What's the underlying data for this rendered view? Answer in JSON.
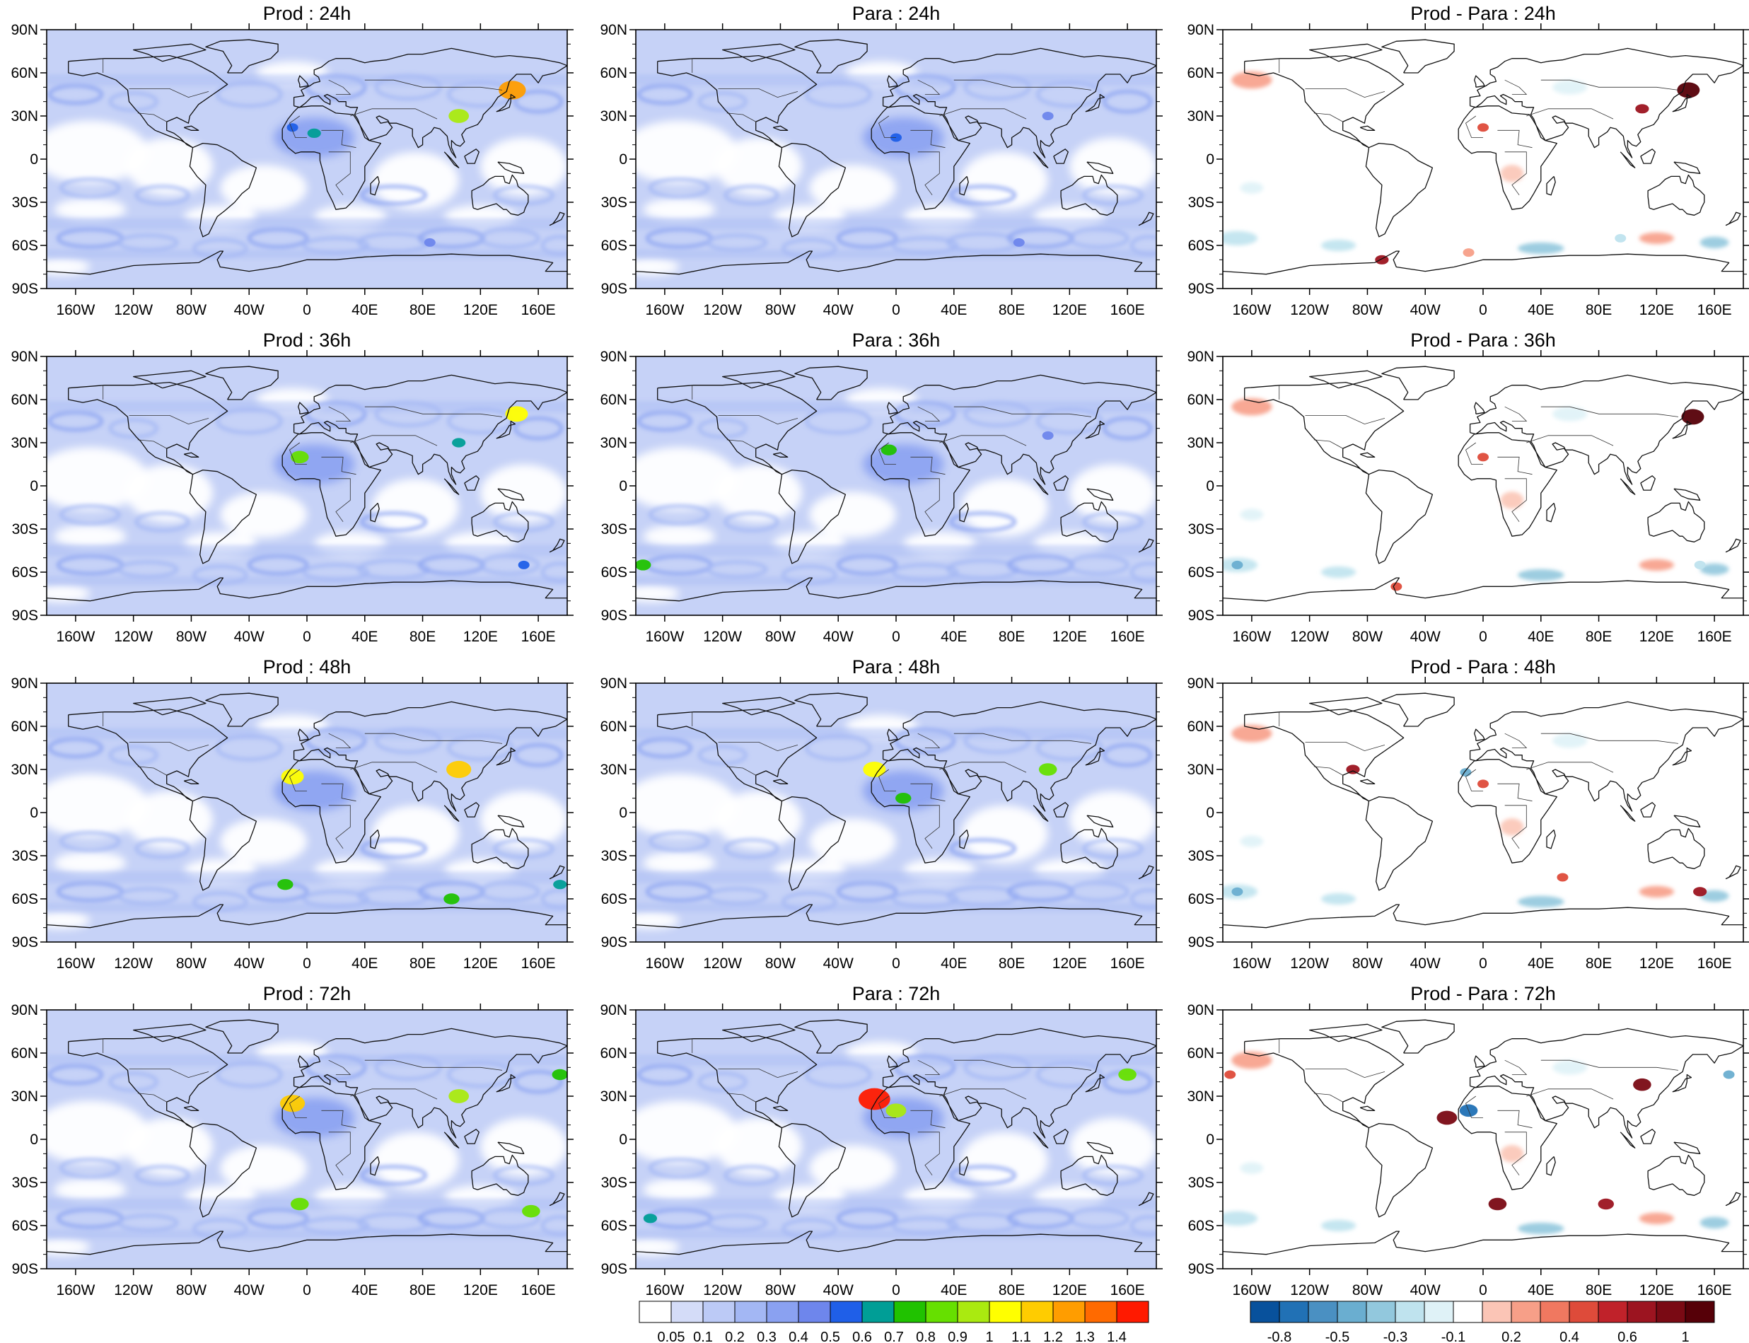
{
  "figure": {
    "rows": [
      "24h",
      "36h",
      "48h",
      "72h"
    ],
    "panels": [
      [
        {
          "title": "Prod : 24h",
          "kind": "abs"
        },
        {
          "title": "Para : 24h",
          "kind": "abs"
        },
        {
          "title": "Prod - Para : 24h",
          "kind": "diff"
        }
      ],
      [
        {
          "title": "Prod : 36h",
          "kind": "abs"
        },
        {
          "title": "Para : 36h",
          "kind": "abs"
        },
        {
          "title": "Prod - Para : 36h",
          "kind": "diff"
        }
      ],
      [
        {
          "title": "Prod : 48h",
          "kind": "abs"
        },
        {
          "title": "Para : 48h",
          "kind": "abs"
        },
        {
          "title": "Prod - Para : 48h",
          "kind": "diff"
        }
      ],
      [
        {
          "title": "Prod : 72h",
          "kind": "abs"
        },
        {
          "title": "Para : 72h",
          "kind": "abs"
        },
        {
          "title": "Prod - Para : 72h",
          "kind": "diff"
        }
      ]
    ],
    "lat_ticks": [
      "90N",
      "60N",
      "30N",
      "0",
      "30S",
      "60S",
      "90S"
    ],
    "lon_ticks": [
      "160W",
      "120W",
      "80W",
      "40W",
      "0",
      "40E",
      "80E",
      "120E",
      "160E"
    ]
  },
  "chart_data": {
    "type": "heatmap",
    "map_projection": "cylindrical equidistant, global",
    "xlim": [
      -180,
      180
    ],
    "ylim": [
      -90,
      90
    ],
    "absolute_colorbar": {
      "levels": [
        "0.05",
        "0.1",
        "0.2",
        "0.3",
        "0.4",
        "0.5",
        "0.6",
        "0.7",
        "0.8",
        "0.9",
        "1",
        "1.1",
        "1.2",
        "1.3",
        "1.4"
      ],
      "colors": [
        "#ffffff",
        "#d4dcf8",
        "#bccaf6",
        "#a3b7f4",
        "#8aa1f1",
        "#6e86ec",
        "#1f5fe8",
        "#009e96",
        "#20c200",
        "#66e000",
        "#aaea10",
        "#ffff00",
        "#ffcc00",
        "#ff9d00",
        "#ff6a00",
        "#ff1a00"
      ]
    },
    "difference_colorbar": {
      "levels": [
        "-0.8",
        "",
        "-0.5",
        "",
        "-0.3",
        "",
        "-0.1",
        "",
        "0.2",
        "",
        "0.4",
        "",
        "0.6",
        "",
        "1"
      ],
      "colors": [
        "#08519c",
        "#2171b5",
        "#4a90c2",
        "#6aaed0",
        "#92c8dd",
        "#bfe3ee",
        "#dff2f7",
        "#ffffff",
        "#fbc5b6",
        "#f79f88",
        "#f07860",
        "#de4b3a",
        "#c0222a",
        "#9c1420",
        "#7a0a14",
        "#560008"
      ]
    },
    "panels": [
      {
        "title": "Prod : 24h",
        "hotspots": [
          {
            "lon": 5,
            "lat": 18,
            "value": 0.6
          },
          {
            "lon": 142,
            "lat": 48,
            "value": 1.2
          },
          {
            "lon": 105,
            "lat": 30,
            "value": 0.9
          },
          {
            "lon": -10,
            "lat": 22,
            "value": 0.5
          },
          {
            "lon": 85,
            "lat": -58,
            "value": 0.4
          }
        ]
      },
      {
        "title": "Para : 24h",
        "hotspots": [
          {
            "lon": 0,
            "lat": 15,
            "value": 0.5
          },
          {
            "lon": 105,
            "lat": 30,
            "value": 0.4
          },
          {
            "lon": 85,
            "lat": -58,
            "value": 0.4
          }
        ]
      },
      {
        "title": "Prod - Para : 24h",
        "hotspots": [
          {
            "lon": 142,
            "lat": 48,
            "value": 1.0
          },
          {
            "lon": 0,
            "lat": 22,
            "value": 0.4
          },
          {
            "lon": 110,
            "lat": 35,
            "value": 0.6
          },
          {
            "lon": -70,
            "lat": -70,
            "value": 0.6
          },
          {
            "lon": -10,
            "lat": -65,
            "value": 0.2
          },
          {
            "lon": 95,
            "lat": -55,
            "value": -0.3
          }
        ]
      },
      {
        "title": "Prod : 36h",
        "hotspots": [
          {
            "lon": -5,
            "lat": 20,
            "value": 0.8
          },
          {
            "lon": 145,
            "lat": 50,
            "value": 1.0
          },
          {
            "lon": 105,
            "lat": 30,
            "value": 0.6
          },
          {
            "lon": 150,
            "lat": -55,
            "value": 0.5
          }
        ]
      },
      {
        "title": "Para : 36h",
        "hotspots": [
          {
            "lon": -5,
            "lat": 25,
            "value": 0.7
          },
          {
            "lon": -175,
            "lat": -55,
            "value": 0.7
          },
          {
            "lon": 105,
            "lat": 35,
            "value": 0.4
          }
        ]
      },
      {
        "title": "Prod - Para : 36h",
        "hotspots": [
          {
            "lon": 145,
            "lat": 48,
            "value": 1.0
          },
          {
            "lon": 0,
            "lat": 20,
            "value": 0.4
          },
          {
            "lon": -170,
            "lat": -55,
            "value": -0.5
          },
          {
            "lon": -60,
            "lat": -70,
            "value": 0.4
          },
          {
            "lon": 150,
            "lat": -55,
            "value": -0.3
          }
        ]
      },
      {
        "title": "Prod : 48h",
        "hotspots": [
          {
            "lon": -10,
            "lat": 25,
            "value": 1.0
          },
          {
            "lon": 105,
            "lat": 30,
            "value": 1.1
          },
          {
            "lon": -15,
            "lat": -50,
            "value": 0.7
          },
          {
            "lon": 100,
            "lat": -60,
            "value": 0.7
          },
          {
            "lon": 175,
            "lat": -50,
            "value": 0.6
          }
        ]
      },
      {
        "title": "Para : 48h",
        "hotspots": [
          {
            "lon": -15,
            "lat": 30,
            "value": 1.0
          },
          {
            "lon": 5,
            "lat": 10,
            "value": 0.7
          },
          {
            "lon": 105,
            "lat": 30,
            "value": 0.8
          }
        ]
      },
      {
        "title": "Prod - Para : 48h",
        "hotspots": [
          {
            "lon": -12,
            "lat": 28,
            "value": -0.5
          },
          {
            "lon": 0,
            "lat": 20,
            "value": 0.4
          },
          {
            "lon": -90,
            "lat": 30,
            "value": 0.6
          },
          {
            "lon": -170,
            "lat": -55,
            "value": -0.5
          },
          {
            "lon": 150,
            "lat": -55,
            "value": 0.6
          },
          {
            "lon": 55,
            "lat": -45,
            "value": 0.4
          }
        ]
      },
      {
        "title": "Prod : 72h",
        "hotspots": [
          {
            "lon": -10,
            "lat": 25,
            "value": 1.1
          },
          {
            "lon": 105,
            "lat": 30,
            "value": 0.9
          },
          {
            "lon": -5,
            "lat": -45,
            "value": 0.8
          },
          {
            "lon": 155,
            "lat": -50,
            "value": 0.8
          },
          {
            "lon": 175,
            "lat": 45,
            "value": 0.7
          }
        ]
      },
      {
        "title": "Para : 72h",
        "hotspots": [
          {
            "lon": -15,
            "lat": 28,
            "value": 1.4
          },
          {
            "lon": 0,
            "lat": 20,
            "value": 0.9
          },
          {
            "lon": 160,
            "lat": 45,
            "value": 0.8
          },
          {
            "lon": -170,
            "lat": -55,
            "value": 0.6
          }
        ]
      },
      {
        "title": "Prod - Para : 72h",
        "hotspots": [
          {
            "lon": -10,
            "lat": 20,
            "value": -0.8
          },
          {
            "lon": -25,
            "lat": 15,
            "value": 0.9
          },
          {
            "lon": 110,
            "lat": 38,
            "value": 0.8
          },
          {
            "lon": 10,
            "lat": -45,
            "value": 0.8
          },
          {
            "lon": 85,
            "lat": -45,
            "value": 0.7
          },
          {
            "lon": -175,
            "lat": 45,
            "value": 0.4
          },
          {
            "lon": 170,
            "lat": 45,
            "value": -0.5
          }
        ]
      }
    ]
  }
}
